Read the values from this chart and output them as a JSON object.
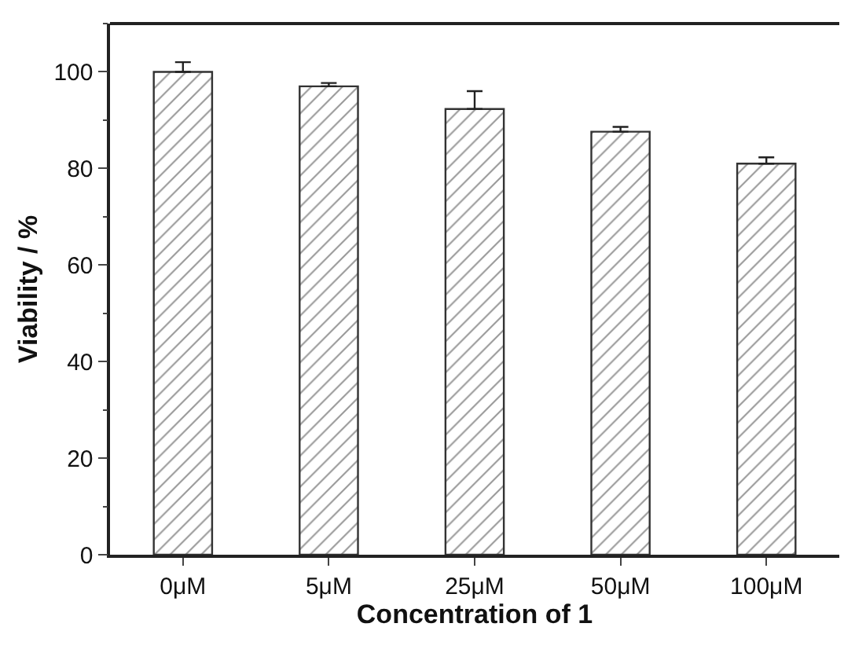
{
  "chart_data": {
    "type": "bar",
    "xlabel": "Concentration of 1",
    "ylabel": "Viability / %",
    "categories": [
      "0μM",
      "5μM",
      "25μM",
      "50μM",
      "100μM"
    ],
    "values": [
      100,
      97.0,
      92.3,
      87.6,
      81.0
    ],
    "errors": [
      2.0,
      0.7,
      3.7,
      1.0,
      1.3
    ],
    "color": "#333333",
    "ylim": [
      0,
      110
    ],
    "yticks": [
      0,
      20,
      40,
      60,
      80,
      100
    ]
  }
}
